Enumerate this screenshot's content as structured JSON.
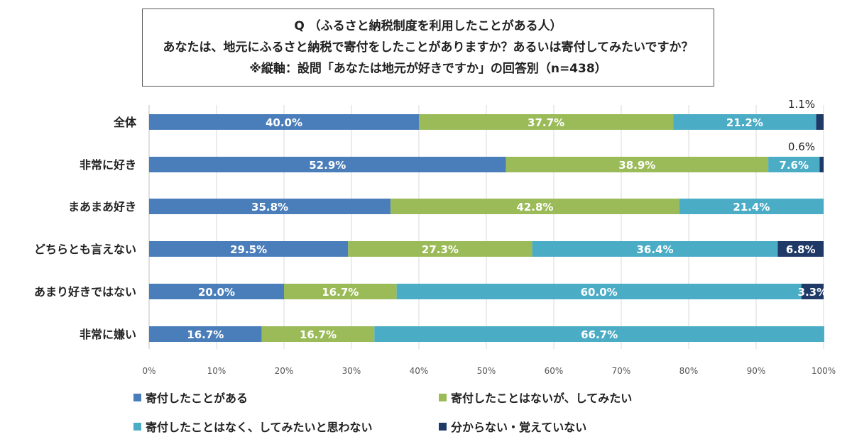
{
  "chart_data": {
    "type": "bar",
    "orientation": "horizontal",
    "stacked": true,
    "title_lines": [
      "Q （ふるさと納税制度を利用したことがある人）",
      "あなたは、地元にふるさと納税で寄付をしたことがありますか？あるいは寄付してみたいですか？",
      "※縦軸：設問「あなたは地元が好きですか」の回答別（n=438）"
    ],
    "categories": [
      "全体",
      "非常に好き",
      "まあまあ好き",
      "どちらとも言えない",
      "あまり好きではない",
      "非常に嫌い"
    ],
    "xlim": [
      0,
      100
    ],
    "x_ticks": [
      "0%",
      "10%",
      "20%",
      "30%",
      "40%",
      "50%",
      "60%",
      "70%",
      "80%",
      "90%",
      "100%"
    ],
    "grid": true,
    "legend_position": "bottom",
    "series": [
      {
        "name": "寄付したことがある",
        "color": "#4A7EBB",
        "values": [
          40.0,
          52.9,
          35.8,
          29.5,
          20.0,
          16.7
        ],
        "labels": [
          "40.0%",
          "52.9%",
          "35.8%",
          "29.5%",
          "20.0%",
          "16.7%"
        ]
      },
      {
        "name": "寄付したことはないが、してみたい",
        "color": "#9BBB59",
        "values": [
          37.7,
          38.9,
          42.8,
          27.3,
          16.7,
          16.7
        ],
        "labels": [
          "37.7%",
          "38.9%",
          "42.8%",
          "27.3%",
          "16.7%",
          "16.7%"
        ]
      },
      {
        "name": "寄付したことはなく、してみたいと思わない",
        "color": "#4BACC6",
        "values": [
          21.2,
          7.6,
          21.4,
          36.4,
          60.0,
          66.7
        ],
        "labels": [
          "21.2%",
          "7.6%",
          "21.4%",
          "36.4%",
          "60.0%",
          "66.7%"
        ]
      },
      {
        "name": "分からない・覚えていない",
        "color": "#1F3A66",
        "values": [
          1.1,
          0.6,
          0.0,
          6.8,
          3.3,
          0.0
        ],
        "labels": [
          "1.1%",
          "0.6%",
          "",
          "6.8%",
          "3.3%",
          ""
        ]
      }
    ]
  }
}
